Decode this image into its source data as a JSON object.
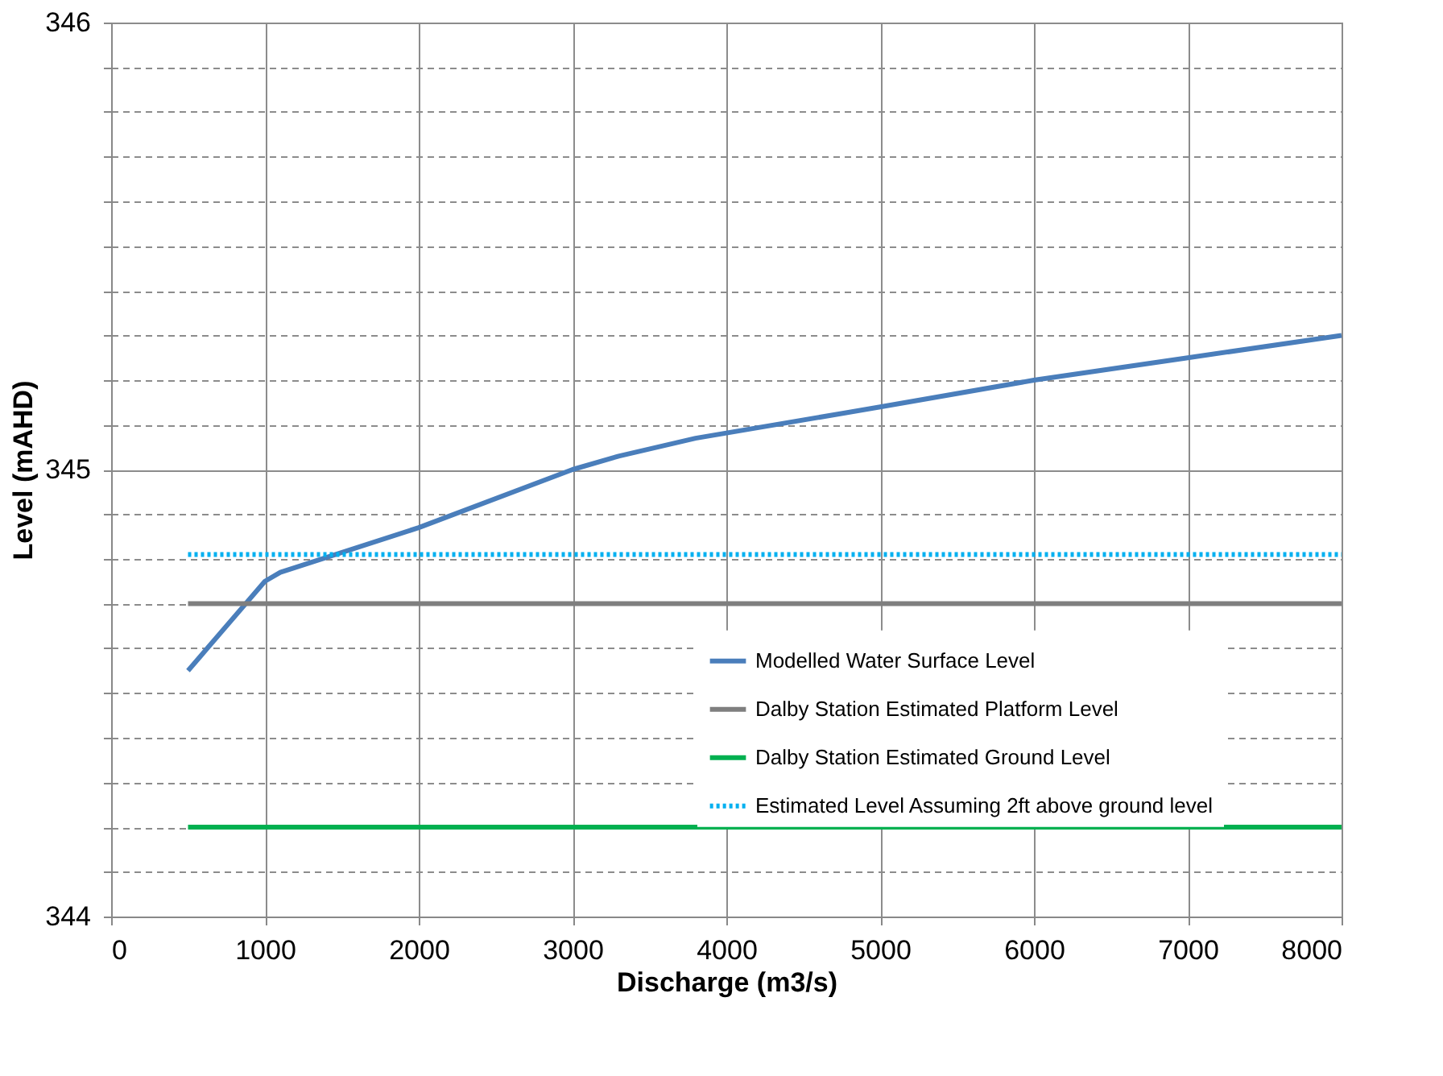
{
  "chart_data": {
    "type": "line",
    "xlabel": "Discharge (m3/s)",
    "ylabel": "Level (mAHD)",
    "xlim": [
      0,
      8000
    ],
    "xticks": [
      0,
      1000,
      2000,
      3000,
      4000,
      5000,
      6000,
      7000,
      8000
    ],
    "ylim": [
      344,
      346
    ],
    "yticks": [
      344,
      {
        "value": 344.1,
        "label": null
      },
      {
        "value": 344.2,
        "label": null
      },
      {
        "value": 344.3,
        "label": null
      },
      {
        "value": 344.4,
        "label": null
      },
      {
        "value": 344.5,
        "label": null
      },
      {
        "value": 344.6,
        "label": null
      },
      {
        "value": 344.7,
        "label": null
      },
      {
        "value": 344.8,
        "label": null
      },
      {
        "value": 344.9,
        "label": null
      },
      345,
      {
        "value": 345.1,
        "label": null
      },
      {
        "value": 345.2,
        "label": null
      },
      {
        "value": 345.3,
        "label": null
      },
      {
        "value": 345.4,
        "label": null
      },
      {
        "value": 345.5,
        "label": null
      },
      {
        "value": 345.6,
        "label": null
      },
      {
        "value": 345.7,
        "label": null
      },
      {
        "value": 345.8,
        "label": null
      },
      {
        "value": 345.9,
        "label": null
      },
      346
    ],
    "grid": true,
    "legend": "bottom right",
    "marker": "none",
    "series": [
      {
        "name": "Modelled Water Surface Level",
        "color": "#4a7ebb",
        "line_style": "solid",
        "x": [
          500,
          1000,
          1100,
          2000,
          3000,
          3300,
          3800,
          5000,
          6000,
          7000,
          8000
        ],
        "values": [
          344.55,
          344.75,
          344.77,
          344.87,
          345.0,
          345.03,
          345.07,
          345.14,
          345.2,
          345.25,
          345.3
        ]
      },
      {
        "name": "Dalby Station Estimated Platform Level",
        "color": "#7f7f7f",
        "line_style": "solid",
        "x": [
          500,
          8000
        ],
        "values": [
          344.7,
          344.7
        ]
      },
      {
        "name": "Dalby Station Estimated Ground Level",
        "color": "#00b050",
        "line_style": "solid",
        "x": [
          500,
          8000
        ],
        "values": [
          344.2,
          344.2
        ]
      },
      {
        "name": "Estimated Level Assuming 2ft above ground level",
        "color": "#00b0f0",
        "line_style": "dotted",
        "x": [
          500,
          8000
        ],
        "values": [
          344.81,
          344.81
        ]
      }
    ]
  }
}
